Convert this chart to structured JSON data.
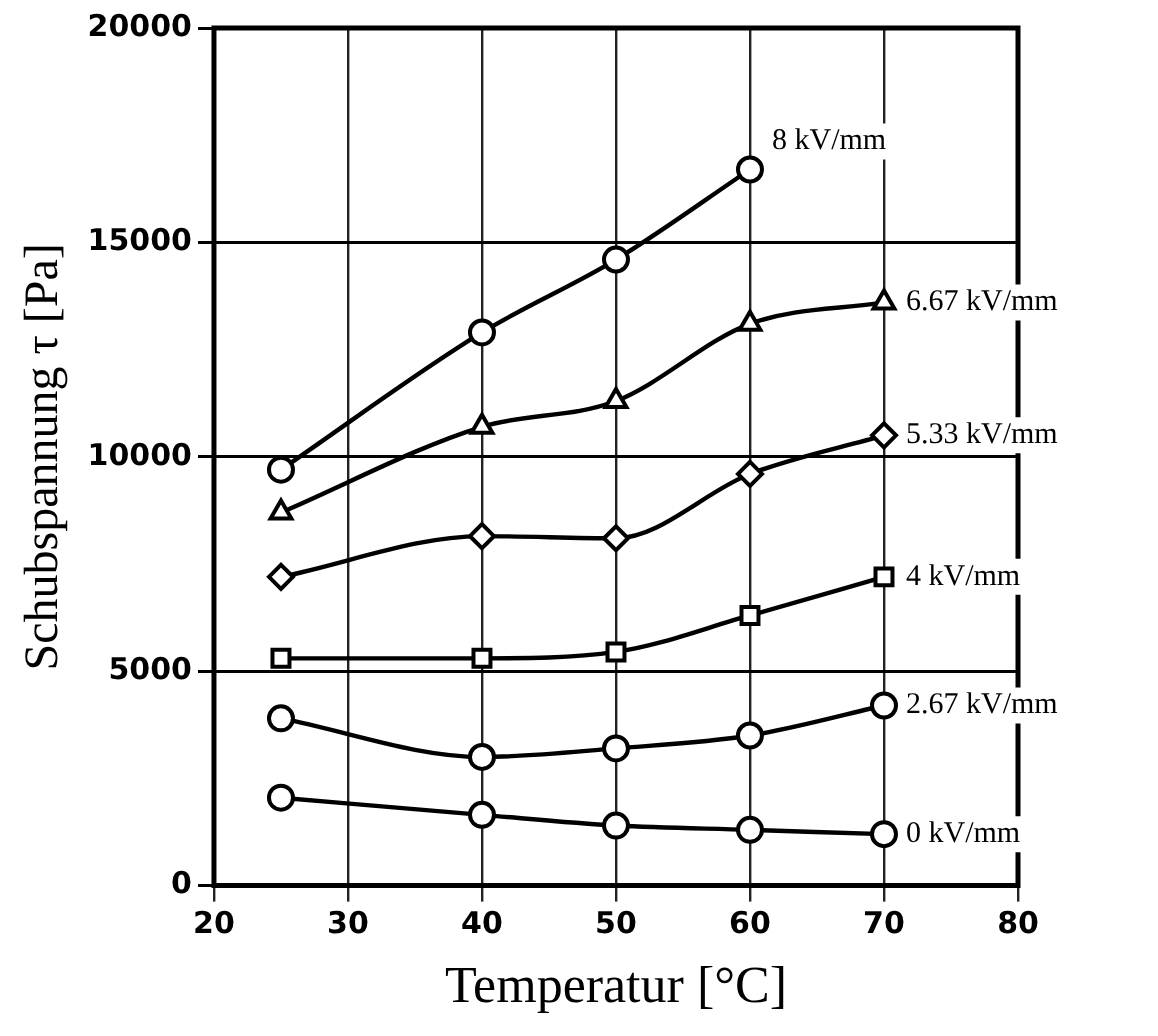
{
  "chart_data": {
    "type": "line",
    "xlabel": "Temperatur [°C]",
    "ylabel": "Schubspannung τ [Pa]",
    "xlim": [
      20,
      80
    ],
    "xticks": [
      20,
      30,
      40,
      50,
      60,
      70,
      80
    ],
    "ylim": [
      0,
      20000
    ],
    "yticks": [
      0,
      5000,
      10000,
      15000,
      20000
    ],
    "grid": true,
    "legend": false,
    "line_style": "solid",
    "series": [
      {
        "name": "8 kV/mm",
        "color": "#000000",
        "marker": "circle",
        "x": [
          25,
          40,
          50,
          60
        ],
        "values": [
          9700,
          12900,
          14600,
          16700
        ]
      },
      {
        "name": "6.67 kV/mm",
        "color": "#000000",
        "marker": "triangle",
        "x": [
          25,
          40,
          50,
          60,
          70
        ],
        "values": [
          8700,
          10700,
          11300,
          13100,
          13600
        ]
      },
      {
        "name": "5.33 kV/mm",
        "color": "#000000",
        "marker": "diamond",
        "x": [
          25,
          40,
          50,
          60,
          70
        ],
        "values": [
          7200,
          8150,
          8100,
          9600,
          10500
        ]
      },
      {
        "name": "4 kV/mm",
        "color": "#000000",
        "marker": "square",
        "x": [
          25,
          40,
          50,
          60,
          70
        ],
        "values": [
          5300,
          5300,
          5450,
          6300,
          7200
        ]
      },
      {
        "name": "2.67 kV/mm",
        "color": "#000000",
        "marker": "circle",
        "x": [
          25,
          40,
          50,
          60,
          70
        ],
        "values": [
          3900,
          3000,
          3200,
          3500,
          4200
        ]
      },
      {
        "name": "0 kV/mm",
        "color": "#000000",
        "marker": "circle",
        "x": [
          25,
          40,
          50,
          60,
          70
        ],
        "values": [
          2050,
          1650,
          1400,
          1300,
          1200
        ]
      }
    ]
  }
}
